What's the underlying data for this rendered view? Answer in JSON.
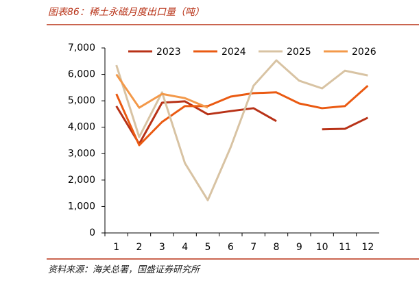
{
  "chart_data": {
    "type": "line",
    "title": "图表86：稀土永磁月度出口量（吨）",
    "source": "资料来源：海关总署，国盛证券研究所",
    "categories": [
      "1",
      "2",
      "3",
      "4",
      "5",
      "6",
      "7",
      "8",
      "9",
      "10",
      "11",
      "12"
    ],
    "series": [
      {
        "name": "2023",
        "color": "#b83217",
        "values": [
          4800,
          3370,
          4930,
          4980,
          4490,
          4610,
          4720,
          4230,
          null,
          3920,
          3940,
          4360
        ]
      },
      {
        "name": "2024",
        "color": "#ea5a12",
        "values": [
          5260,
          3320,
          4200,
          4800,
          4800,
          5160,
          5290,
          5320,
          4900,
          4720,
          4800,
          5570
        ]
      },
      {
        "name": "2025",
        "color": "#d8c3a3",
        "values": [
          6350,
          3630,
          5320,
          2640,
          1240,
          3240,
          5570,
          6530,
          5760,
          5470,
          6140,
          5960
        ]
      },
      {
        "name": "2026",
        "color": "#f3994a",
        "values": [
          6000,
          4740,
          5260,
          5100,
          4740,
          null,
          null,
          null,
          null,
          null,
          null,
          null
        ]
      }
    ],
    "ylim": [
      0,
      7000
    ],
    "yticks": [
      0,
      {
        "value": 1000,
        "label": "1,000"
      },
      {
        "value": 2000,
        "label": "2,000"
      },
      {
        "value": 3000,
        "label": "3,000"
      },
      {
        "value": 4000,
        "label": "4,000"
      },
      {
        "value": 5000,
        "label": "5,000"
      },
      {
        "value": 6000,
        "label": "6,000"
      },
      {
        "value": 7000,
        "label": "7,000"
      }
    ],
    "grid": false
  }
}
